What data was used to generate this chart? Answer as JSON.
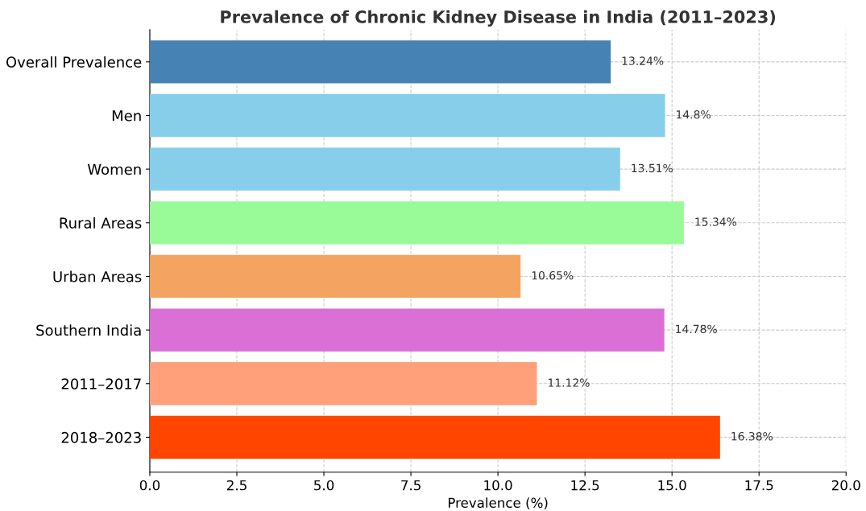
{
  "chart_data": {
    "type": "bar",
    "orientation": "horizontal",
    "title": "Prevalence of Chronic Kidney Disease in India (2011–2023)",
    "xlabel": "Prevalence (%)",
    "categories": [
      "Overall Prevalence",
      "Men",
      "Women",
      "Rural Areas",
      "Urban Areas",
      "Southern India",
      "2011–2017",
      "2018–2023"
    ],
    "values": [
      13.24,
      14.8,
      13.51,
      15.34,
      10.65,
      14.78,
      11.12,
      16.38
    ],
    "colors": [
      "#4682b4",
      "#87ceeb",
      "#87ceeb",
      "#98fb98",
      "#f4a460",
      "#da70d6",
      "#ffa07a",
      "#ff4500"
    ],
    "value_labels": [
      "13.24%",
      "14.8%",
      "13.51%",
      "15.34%",
      "10.65%",
      "14.78%",
      "11.12%",
      "16.38%"
    ],
    "xlim": [
      0.0,
      20.0
    ],
    "xticks": [
      {
        "value": 0,
        "label": "0.0"
      },
      2.5,
      {
        "value": 5,
        "label": "5.0"
      },
      7.5,
      {
        "value": 10,
        "label": "10.0"
      },
      12.5,
      {
        "value": 15,
        "label": "15.0"
      },
      17.5,
      {
        "value": 20,
        "label": "20.0"
      }
    ],
    "grid": true
  }
}
